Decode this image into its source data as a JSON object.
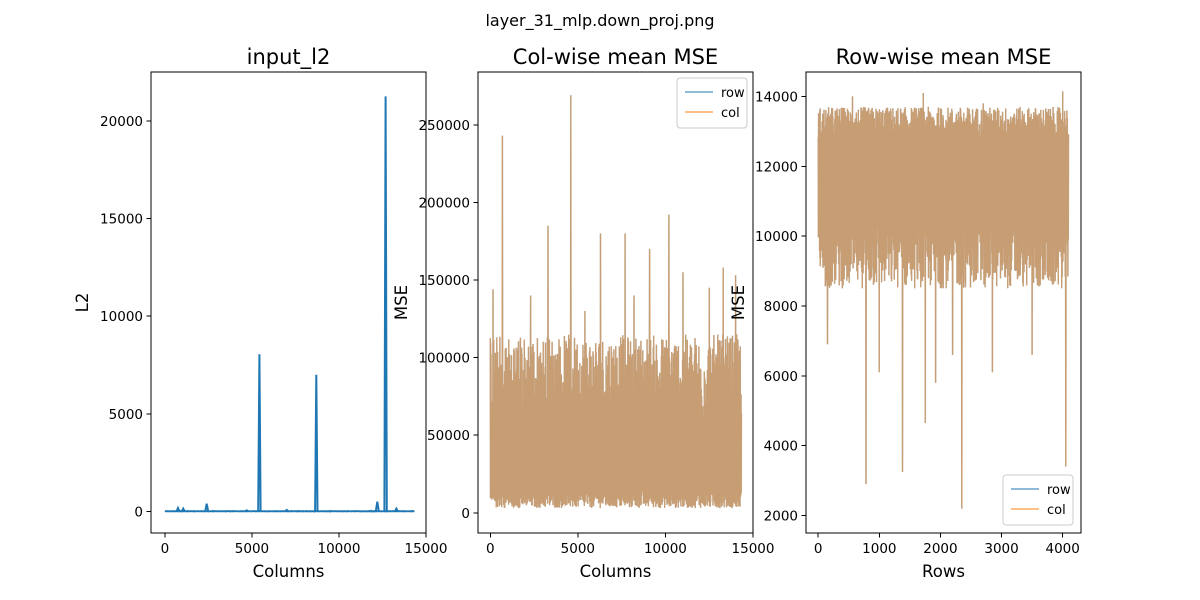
{
  "figure": {
    "title": "layer_31_mlp.down_proj.png"
  },
  "chart_data": [
    {
      "type": "line",
      "title": "input_l2",
      "xlabel": "Columns",
      "ylabel": "L2",
      "xlim": [
        -800,
        15000
      ],
      "ylim": [
        -1100,
        22500
      ],
      "x_ticks": [
        0,
        5000,
        10000,
        15000
      ],
      "x_tick_labels": [
        "0",
        "5000",
        "10000",
        "15000"
      ],
      "y_ticks": [
        0,
        5000,
        10000,
        15000,
        20000
      ],
      "y_tick_labels": [
        "0",
        "5000",
        "10000",
        "15000",
        "20000"
      ],
      "grid": false,
      "legend": null,
      "series": [
        {
          "color": "#1f77b4",
          "x_range": [
            0,
            14335
          ],
          "baseline": 10,
          "noise": 15,
          "spikes": [
            {
              "x": 5430,
              "y": 8050
            },
            {
              "x": 8700,
              "y": 7000
            },
            {
              "x": 12680,
              "y": 21250
            },
            {
              "x": 12200,
              "y": 500
            },
            {
              "x": 2400,
              "y": 400
            },
            {
              "x": 1050,
              "y": 150
            },
            {
              "x": 750,
              "y": 180
            },
            {
              "x": 13300,
              "y": 150
            },
            {
              "x": 7000,
              "y": 80
            },
            {
              "x": 4700,
              "y": 60
            }
          ]
        }
      ]
    },
    {
      "type": "line",
      "title": "Col-wise mean MSE",
      "xlabel": "Columns",
      "ylabel": "MSE",
      "xlim": [
        -700,
        15000
      ],
      "ylim": [
        -13000,
        284000
      ],
      "x_ticks": [
        0,
        5000,
        10000,
        15000
      ],
      "x_tick_labels": [
        "0",
        "5000",
        "10000",
        "15000"
      ],
      "y_ticks": [
        0,
        50000,
        100000,
        150000,
        200000,
        250000
      ],
      "y_tick_labels": [
        "0",
        "50000",
        "100000",
        "150000",
        "200000",
        "250000"
      ],
      "grid": false,
      "legend": "top-right",
      "series": [
        {
          "name": "row",
          "color": "#1f77b4",
          "opacity": 0.5
        },
        {
          "name": "col",
          "color": "#ff7f0e",
          "opacity": 0.5
        }
      ],
      "x_range": [
        0,
        14335
      ],
      "band_low": [
        3000,
        14000
      ],
      "band_high": [
        55000,
        115000
      ],
      "spikes": [
        {
          "x": 150,
          "y": 144000
        },
        {
          "x": 700,
          "y": 243000
        },
        {
          "x": 3300,
          "y": 185000
        },
        {
          "x": 4600,
          "y": 269000
        },
        {
          "x": 6300,
          "y": 180000
        },
        {
          "x": 7700,
          "y": 180000
        },
        {
          "x": 9100,
          "y": 170000
        },
        {
          "x": 10200,
          "y": 192000
        },
        {
          "x": 11000,
          "y": 155000
        },
        {
          "x": 13300,
          "y": 158000
        },
        {
          "x": 14000,
          "y": 153000
        },
        {
          "x": 12500,
          "y": 145000
        },
        {
          "x": 2300,
          "y": 140000
        },
        {
          "x": 8200,
          "y": 140000
        },
        {
          "x": 5400,
          "y": 130000
        }
      ]
    },
    {
      "type": "line",
      "title": "Row-wise mean MSE",
      "xlabel": "Rows",
      "ylabel": "MSE",
      "xlim": [
        -200,
        4300
      ],
      "ylim": [
        1500,
        14700
      ],
      "x_ticks": [
        0,
        1000,
        2000,
        3000,
        4000
      ],
      "x_tick_labels": [
        "0",
        "1000",
        "2000",
        "3000",
        "4000"
      ],
      "y_ticks": [
        2000,
        4000,
        6000,
        8000,
        10000,
        12000,
        14000
      ],
      "y_tick_labels": [
        "2000",
        "4000",
        "6000",
        "8000",
        "10000",
        "12000",
        "14000"
      ],
      "grid": false,
      "legend": "bottom-right",
      "series": [
        {
          "name": "row",
          "color": "#1f77b4",
          "opacity": 0.5
        },
        {
          "name": "col",
          "color": "#ff7f0e",
          "opacity": 0.5
        }
      ],
      "x_range": [
        0,
        4095
      ],
      "band_low": [
        8500,
        10500
      ],
      "band_high": [
        12800,
        13700
      ],
      "dips": [
        {
          "x": 780,
          "y": 2900
        },
        {
          "x": 1380,
          "y": 3250
        },
        {
          "x": 1750,
          "y": 4650
        },
        {
          "x": 2350,
          "y": 2200
        },
        {
          "x": 4050,
          "y": 3400
        },
        {
          "x": 1920,
          "y": 5800
        },
        {
          "x": 2850,
          "y": 6100
        },
        {
          "x": 150,
          "y": 6900
        },
        {
          "x": 1000,
          "y": 6100
        },
        {
          "x": 3500,
          "y": 6600
        },
        {
          "x": 2200,
          "y": 6600
        }
      ],
      "peaks": [
        {
          "x": 560,
          "y": 14000
        },
        {
          "x": 1720,
          "y": 14100
        },
        {
          "x": 4000,
          "y": 14150
        },
        {
          "x": 2700,
          "y": 13800
        },
        {
          "x": 3300,
          "y": 13700
        }
      ]
    }
  ]
}
